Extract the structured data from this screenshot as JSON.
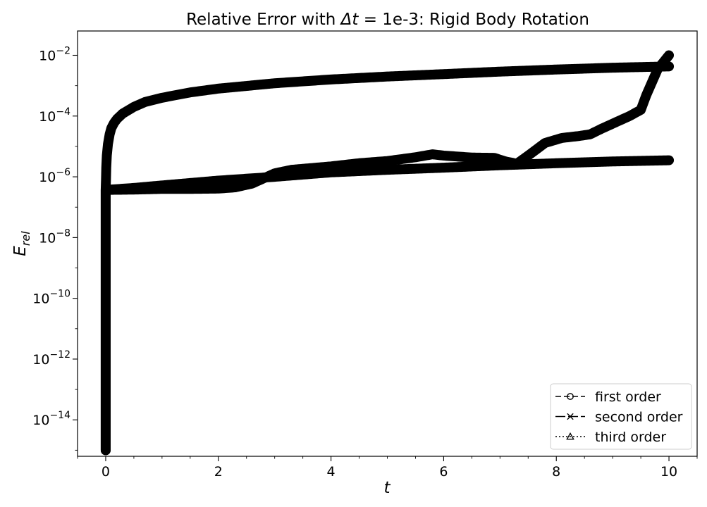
{
  "chart_data": {
    "type": "line",
    "title_prefix": "Relative Error with ",
    "title_math": "Δt",
    "title_suffix": " = 1e-3: Rigid Body Rotation",
    "xlabel": "t",
    "ylabel_main": "E",
    "ylabel_sub": "rel",
    "xlim": [
      -0.5,
      10.5
    ],
    "ylog": true,
    "ylim_exp": [
      -15.2,
      -1.2
    ],
    "grid": false,
    "legend_position": "lower-right",
    "xticks": [
      {
        "value": 0,
        "label": "0"
      },
      {
        "value": 2,
        "label": "2"
      },
      {
        "value": 4,
        "label": "4"
      },
      {
        "value": 6,
        "label": "6"
      },
      {
        "value": 8,
        "label": "8"
      },
      {
        "value": 10,
        "label": "10"
      }
    ],
    "yticks": [
      {
        "exp": -2,
        "base": "10",
        "sup": "−2"
      },
      {
        "exp": -4,
        "base": "10",
        "sup": "−4"
      },
      {
        "exp": -6,
        "base": "10",
        "sup": "−6"
      },
      {
        "exp": -8,
        "base": "10",
        "sup": "−8"
      },
      {
        "exp": -10,
        "base": "10",
        "sup": "−10"
      },
      {
        "exp": -12,
        "base": "10",
        "sup": "−12"
      },
      {
        "exp": -14,
        "base": "10",
        "sup": "−14"
      }
    ],
    "series": [
      {
        "name": "first order",
        "marker": "circle",
        "dash": "8,4",
        "x": [
          0,
          0,
          0.005,
          0.01,
          0.02,
          0.04,
          0.07,
          0.1,
          0.15,
          0.2,
          0.3,
          0.5,
          0.7,
          1,
          1.5,
          2,
          3,
          4,
          5,
          6,
          7,
          8,
          9,
          10
        ],
        "y": [
          1e-15,
          4e-07,
          8e-07,
          2e-06,
          5e-06,
          1.2e-05,
          2.5e-05,
          4e-05,
          6e-05,
          8e-05,
          0.00012,
          0.0002,
          0.00029,
          0.0004,
          0.0006,
          0.0008,
          0.0012,
          0.0016,
          0.002,
          0.0024,
          0.0029,
          0.0034,
          0.0039,
          0.0043
        ]
      },
      {
        "name": "second order",
        "marker": "x",
        "dash": "14,4",
        "x": [
          0,
          0,
          0.5,
          1,
          2,
          3,
          4,
          5,
          6,
          7,
          8,
          9,
          10
        ],
        "y": [
          1e-15,
          3.7e-07,
          4.3e-07,
          5.2e-07,
          7.5e-07,
          1e-06,
          1.4e-06,
          1.7e-06,
          2e-06,
          2.4e-06,
          2.8e-06,
          3.2e-06,
          3.5e-06
        ]
      },
      {
        "name": "third order",
        "marker": "triangle",
        "dash": "2,3",
        "x": [
          0,
          0,
          0.5,
          1,
          1.5,
          2,
          2.3,
          2.6,
          3,
          3.3,
          3.6,
          4,
          4.5,
          5,
          5.5,
          5.8,
          6,
          6.5,
          6.9,
          7.1,
          7.3,
          7.5,
          7.8,
          8.1,
          8.4,
          8.6,
          8.8,
          9.1,
          9.3,
          9.5,
          9.6,
          9.8,
          10
        ],
        "y": [
          1e-15,
          3.7e-07,
          3.8e-07,
          4e-07,
          4e-07,
          4.1e-07,
          4.5e-07,
          6e-07,
          1.3e-06,
          1.7e-06,
          1.9e-06,
          2.2e-06,
          2.8e-06,
          3.3e-06,
          4.4e-06,
          5.5e-06,
          5e-06,
          4.3e-06,
          4.2e-06,
          3.2e-06,
          2.7e-06,
          5e-06,
          1.3e-05,
          1.9e-05,
          2.2e-05,
          2.5e-05,
          3.8e-05,
          6.8e-05,
          0.0001,
          0.00016,
          0.0005,
          0.0035,
          0.01
        ]
      }
    ]
  }
}
